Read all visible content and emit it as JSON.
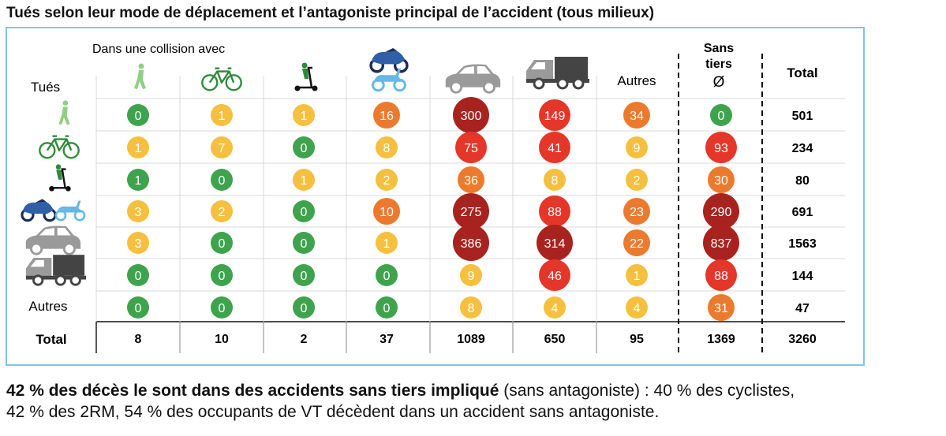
{
  "title": "Tués selon leur mode de déplacement et l’antagoniste principal de l’accident (tous milieux)",
  "colors": {
    "green": "#3fa34d",
    "yellow": "#f5c040",
    "orange": "#ec7a2e",
    "red": "#e5362a",
    "darkred": "#a8231f",
    "frame": "#7fc6e2",
    "icon_green": "#2e8b3a",
    "icon_light_green": "#8ed081",
    "icon_blue": "#2f5fa7",
    "icon_light_blue": "#66b8e6",
    "icon_grey": "#9a9a9a",
    "icon_dark_grey": "#444444"
  },
  "labels": {
    "collision_header": "Dans une collision avec",
    "row_header": "Tués",
    "sans_tiers_line1": "Sans",
    "sans_tiers_line2": "tiers",
    "sans_tiers_symbol": "Ø",
    "total_col": "Total",
    "total_row": "Total"
  },
  "chart_data": {
    "type": "table",
    "title": "Tués selon leur mode de déplacement et l’antagoniste principal de l’accident (tous milieux)",
    "columns": [
      {
        "key": "pieton",
        "icon": "pedestrian-icon"
      },
      {
        "key": "velo",
        "icon": "bicycle-icon"
      },
      {
        "key": "edp",
        "icon": "scooter-icon"
      },
      {
        "key": "2rm",
        "icon": "motorcycle-icon"
      },
      {
        "key": "vt",
        "icon": "car-icon"
      },
      {
        "key": "pl",
        "icon": "truck-icon"
      },
      {
        "key": "autres",
        "label": "Autres"
      },
      {
        "key": "sans_tiers",
        "label": "Sans tiers Ø"
      }
    ],
    "rows": [
      {
        "key": "pieton",
        "icon": "pedestrian-icon",
        "values": [
          0,
          1,
          1,
          16,
          300,
          149,
          34,
          0
        ],
        "total": 501
      },
      {
        "key": "velo",
        "icon": "bicycle-icon",
        "values": [
          1,
          7,
          0,
          8,
          75,
          41,
          9,
          93
        ],
        "total": 234
      },
      {
        "key": "edp",
        "icon": "scooter-icon",
        "values": [
          1,
          0,
          1,
          2,
          36,
          8,
          2,
          30
        ],
        "total": 80
      },
      {
        "key": "2rm",
        "icon": "motorcycle-icon",
        "values": [
          3,
          2,
          0,
          10,
          275,
          88,
          23,
          290
        ],
        "total": 691
      },
      {
        "key": "vt",
        "icon": "car-icon",
        "values": [
          3,
          0,
          0,
          1,
          386,
          314,
          22,
          837
        ],
        "total": 1563
      },
      {
        "key": "pl",
        "icon": "truck-icon",
        "values": [
          0,
          0,
          0,
          0,
          9,
          46,
          1,
          88
        ],
        "total": 144
      },
      {
        "key": "autres",
        "label": "Autres",
        "values": [
          0,
          0,
          0,
          0,
          8,
          4,
          4,
          31
        ],
        "total": 47
      }
    ],
    "column_totals": [
      8,
      10,
      2,
      37,
      1089,
      650,
      95,
      1369
    ],
    "grand_total": 3260
  },
  "footer": {
    "bold": "42 % des décès le sont dans des accidents sans tiers impliqué",
    "normal": " (sans antagoniste) : 40 % des cyclistes,",
    "line2": "42 % des 2RM, 54 % des occupants de VT décèdent dans un accident sans antagoniste."
  }
}
